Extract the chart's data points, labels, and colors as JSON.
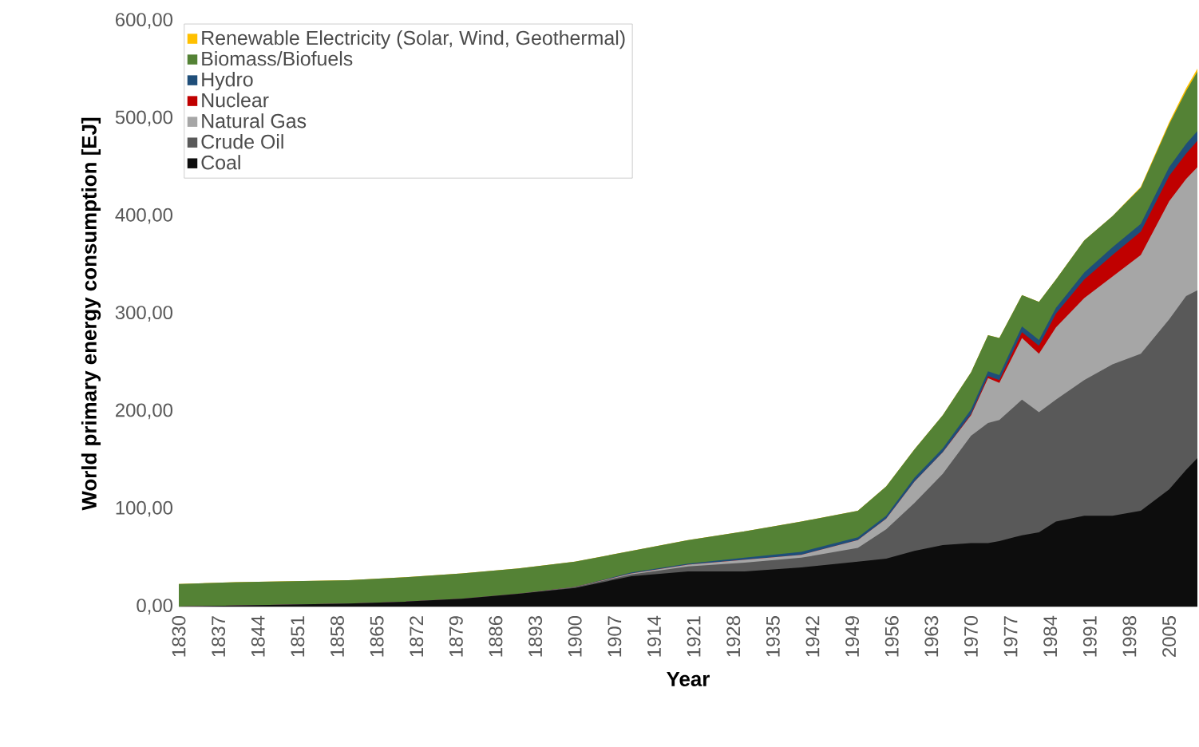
{
  "chart_data": {
    "type": "area",
    "stacked": true,
    "xlabel": "Year",
    "ylabel": "World primary energy consumption [EJ]",
    "x": [
      1830,
      1840,
      1850,
      1860,
      1870,
      1880,
      1890,
      1900,
      1910,
      1920,
      1930,
      1940,
      1950,
      1955,
      1960,
      1965,
      1970,
      1973,
      1975,
      1979,
      1982,
      1985,
      1990,
      1995,
      2000,
      2005,
      2008,
      2010
    ],
    "series": [
      {
        "name": "Coal",
        "color": "#0d0d0d",
        "values": [
          0,
          1,
          2,
          3,
          5,
          8,
          13,
          19,
          31,
          36,
          36,
          40,
          46,
          49,
          57,
          63,
          65,
          65,
          67,
          73,
          76,
          87,
          93,
          93,
          98,
          120,
          140,
          152
        ]
      },
      {
        "name": "Crude Oil",
        "color": "#595959",
        "values": [
          0,
          0,
          0,
          0,
          0,
          0,
          0,
          1,
          2,
          5,
          9,
          10,
          14,
          30,
          49,
          73,
          110,
          123,
          124,
          139,
          123,
          125,
          139,
          155,
          161,
          174,
          178,
          172
        ]
      },
      {
        "name": "Natural Gas",
        "color": "#a6a6a6",
        "values": [
          0,
          0,
          0,
          0,
          0,
          0,
          0,
          0,
          1,
          2,
          3,
          3,
          8,
          11,
          22,
          22,
          21,
          46,
          38,
          63,
          60,
          74,
          84,
          90,
          101,
          121,
          120,
          126
        ]
      },
      {
        "name": "Nuclear",
        "color": "#c00000",
        "values": [
          0,
          0,
          0,
          0,
          0,
          0,
          0,
          0,
          0,
          0,
          0,
          0,
          0,
          0,
          0,
          0,
          1,
          2,
          3,
          6,
          8,
          14,
          19,
          22,
          24,
          26,
          26,
          27
        ]
      },
      {
        "name": "Hydro",
        "color": "#1f4e79",
        "values": [
          0,
          0,
          0,
          0,
          0,
          0,
          0,
          0,
          1,
          1,
          2,
          3,
          3,
          3,
          4,
          4,
          5,
          5,
          5,
          6,
          6,
          6,
          7,
          8,
          8,
          9,
          10,
          10
        ]
      },
      {
        "name": "Biomass/Biofuels",
        "color": "#548235",
        "values": [
          23,
          24,
          24,
          24,
          25,
          26,
          26,
          26,
          22,
          24,
          27,
          31,
          27,
          30,
          29,
          34,
          38,
          37,
          38,
          32,
          39,
          29,
          33,
          32,
          37,
          44,
          54,
          61
        ]
      },
      {
        "name": "Renewable Electricity (Solar, Wind, Geothermal)",
        "color": "#ffc000",
        "values": [
          0,
          0,
          0,
          0,
          0,
          0,
          0,
          0,
          0,
          0,
          0,
          0,
          0,
          0,
          0,
          0,
          0,
          0,
          0,
          0,
          0,
          0,
          0,
          0,
          1,
          2,
          3,
          3
        ]
      }
    ],
    "xlim": [
      1830,
      2010
    ],
    "xticks": [
      1830,
      1837,
      1844,
      1851,
      1858,
      1865,
      1872,
      1879,
      1886,
      1893,
      1900,
      1907,
      1914,
      1921,
      1928,
      1935,
      1942,
      1949,
      1956,
      1963,
      1970,
      1977,
      1984,
      1991,
      1998,
      2005
    ],
    "ylim": [
      0,
      600
    ],
    "yticks": [
      {
        "value": 0,
        "label": "0,00"
      },
      {
        "value": 100,
        "label": "100,00"
      },
      {
        "value": 200,
        "label": "200,00"
      },
      {
        "value": 300,
        "label": "300,00"
      },
      {
        "value": 400,
        "label": "400,00"
      },
      {
        "value": 500,
        "label": "500,00"
      },
      {
        "value": 600,
        "label": "600,00"
      }
    ],
    "legend": "top left",
    "grid": false
  }
}
